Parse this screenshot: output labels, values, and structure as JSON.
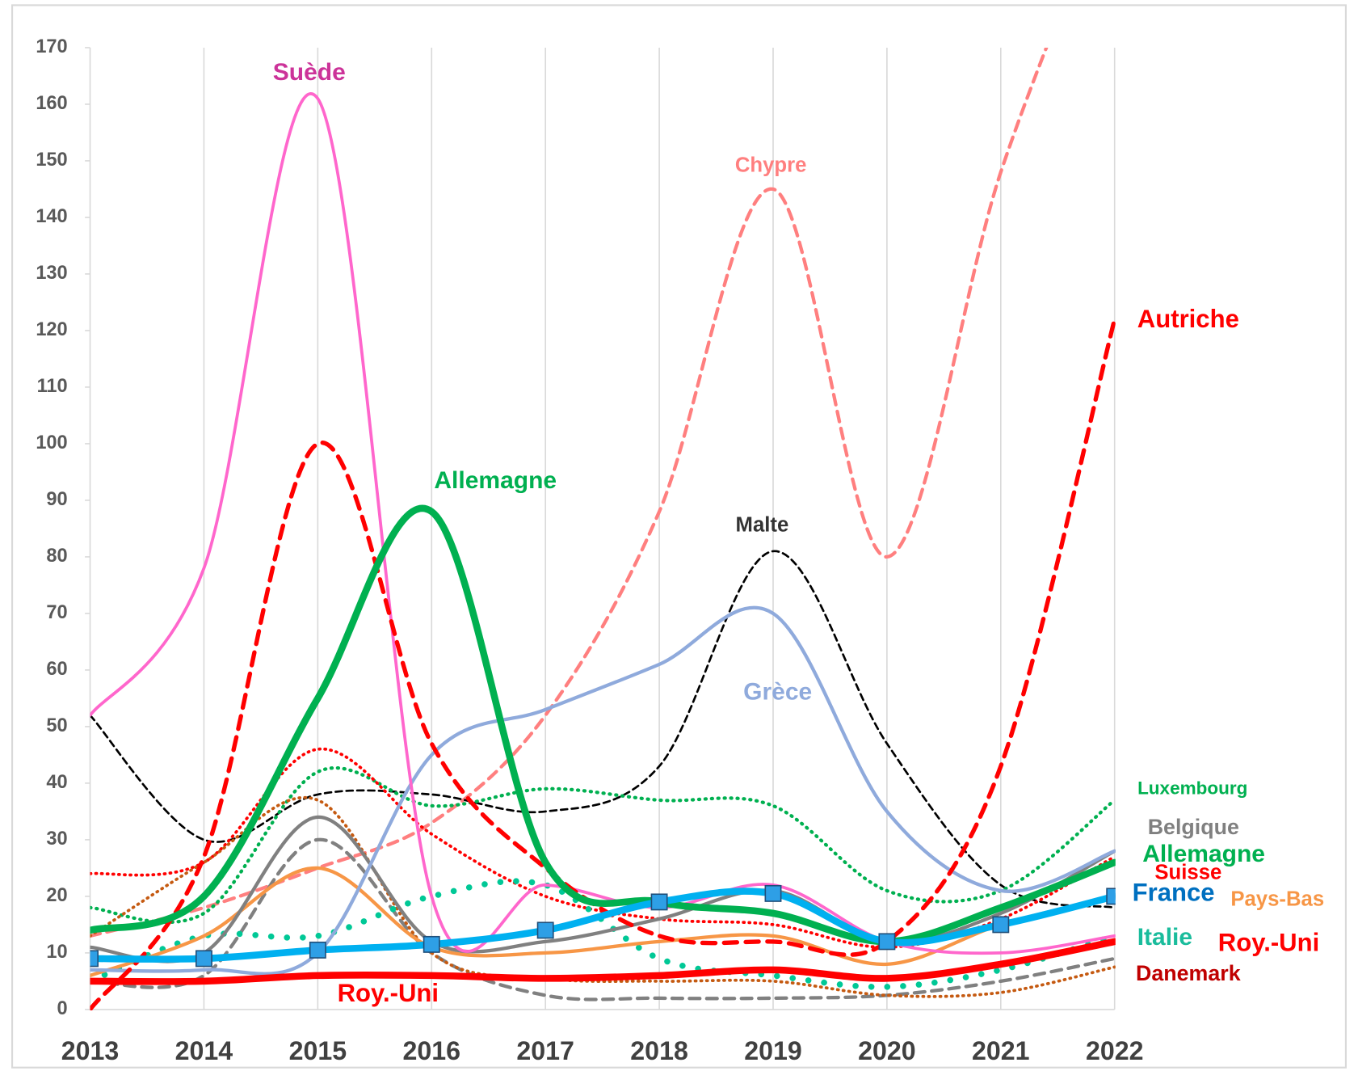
{
  "chart_data": {
    "type": "line",
    "x": [
      2013,
      2014,
      2015,
      2016,
      2017,
      2018,
      2019,
      2020,
      2021,
      2022
    ],
    "xlim": [
      2013,
      2022
    ],
    "xticks": [
      2013,
      2014,
      2015,
      2016,
      2017,
      2018,
      2019,
      2020,
      2021,
      2022
    ],
    "ylim": [
      0,
      170
    ],
    "yticks": [
      0,
      10,
      20,
      30,
      40,
      50,
      60,
      70,
      80,
      90,
      100,
      110,
      120,
      130,
      140,
      150,
      160,
      170
    ],
    "grid": "x",
    "series": [
      {
        "name": "Chypre",
        "color": "#ff7f7f",
        "dash": "dashed",
        "width": 4,
        "values": [
          13,
          18,
          25,
          33,
          52,
          88,
          145,
          80,
          148,
          200
        ]
      },
      {
        "name": "Malte",
        "color": "#000000",
        "dash": "dashed",
        "width": 2.5,
        "values": [
          52,
          30,
          38,
          38,
          35,
          43,
          81,
          47,
          22,
          18
        ]
      },
      {
        "name": "Luxembourg",
        "color": "#00b050",
        "dash": "dotted",
        "width": 4,
        "values": [
          18,
          17,
          42,
          36,
          39,
          37,
          36,
          21,
          21,
          37
        ]
      },
      {
        "name": "Suisse",
        "color": "#ff0000",
        "dash": "dotted",
        "width": 3.5,
        "values": [
          24,
          26,
          46,
          31,
          20,
          16,
          15,
          11,
          16,
          27
        ]
      },
      {
        "color": "#808080",
        "dash": "dashed",
        "width": 4,
        "values": [
          5,
          6,
          30,
          10,
          2.5,
          2,
          2,
          2.5,
          5,
          9
        ]
      },
      {
        "name": "Danemark",
        "color": "#c55a11",
        "dash": "dotted",
        "width": 3.5,
        "values": [
          13,
          26,
          37,
          10,
          5.5,
          5,
          5,
          2.5,
          3,
          7.5
        ]
      },
      {
        "name": "Italie",
        "color": "#00c896",
        "dash": "bigdot",
        "width": 7,
        "values": [
          5,
          13,
          13,
          20,
          22,
          9,
          6,
          4,
          7,
          13
        ]
      },
      {
        "name": "Pays-Bas",
        "color": "#f79646",
        "dash": "solid",
        "width": 4,
        "values": [
          6,
          13,
          25,
          11,
          10,
          12,
          13,
          8,
          15,
          20
        ]
      },
      {
        "name": "Belgique",
        "color": "#808080",
        "dash": "solid",
        "width": 4,
        "values": [
          11,
          10,
          34,
          12,
          12,
          16,
          21,
          12,
          17,
          28
        ]
      },
      {
        "name": "Grèce",
        "color": "#8faadc",
        "dash": "solid",
        "width": 4,
        "values": [
          7,
          7,
          10,
          45,
          53,
          61,
          70,
          35,
          21,
          28
        ]
      },
      {
        "name": "Suède",
        "color": "#ff66cc",
        "dash": "solid",
        "width": 3.5,
        "values": [
          52,
          78,
          161,
          20,
          22,
          18,
          22,
          12,
          10,
          13
        ]
      },
      {
        "name": "Autriche",
        "color": "#ff0000",
        "dash": "dashed",
        "width": 5,
        "values": [
          0,
          27,
          100,
          47,
          25,
          13,
          12,
          12,
          43,
          122
        ]
      },
      {
        "name": "Allemagne",
        "color": "#00b050",
        "dash": "solid",
        "width": 8,
        "values": [
          14,
          20,
          55,
          88,
          26,
          19,
          17,
          12,
          18,
          26
        ]
      },
      {
        "name": "Roy.-Uni",
        "color": "#ff0000",
        "dash": "solid",
        "width": 8,
        "values": [
          5,
          5,
          6,
          6,
          5.5,
          6,
          7,
          5.5,
          8,
          12
        ]
      },
      {
        "name": "France",
        "color": "#00b0f0",
        "dash": "solid",
        "width": 8,
        "marker": "square",
        "values": [
          9,
          9,
          10.5,
          11.5,
          14,
          19,
          20.5,
          12,
          15,
          20
        ]
      }
    ]
  }
}
